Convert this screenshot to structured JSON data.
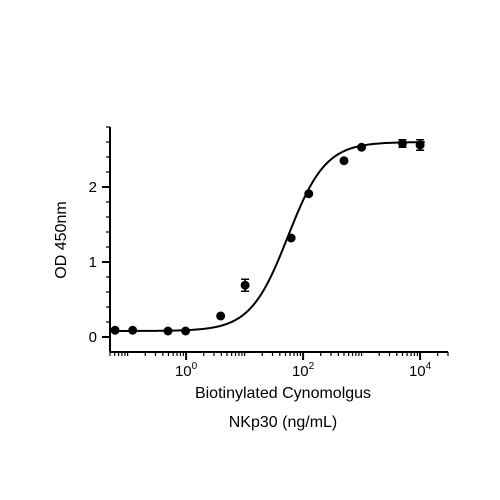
{
  "chart_data": {
    "type": "scatter",
    "xlabel_lines": [
      "Biotinylated Cynomolgus",
      "NKp30 (ng/mL)"
    ],
    "ylabel": "OD 450nm",
    "x_scale": "log",
    "xlim": [
      0.05,
      30000
    ],
    "ylim": [
      -0.2,
      2.8
    ],
    "x_ticks": [
      {
        "value": 1,
        "base": "10",
        "exp": "0"
      },
      {
        "value": 100,
        "base": "10",
        "exp": "2"
      },
      {
        "value": 10000,
        "base": "10",
        "exp": "4"
      }
    ],
    "y_ticks": [
      0,
      1,
      2
    ],
    "grid": false,
    "legend": "none",
    "points": [
      {
        "x": 0.061,
        "y": 0.09,
        "err": 0.01
      },
      {
        "x": 0.122,
        "y": 0.09,
        "err": 0.01
      },
      {
        "x": 0.49,
        "y": 0.08,
        "err": 0.01
      },
      {
        "x": 0.98,
        "y": 0.08,
        "err": 0.01
      },
      {
        "x": 3.9,
        "y": 0.28,
        "err": 0.01
      },
      {
        "x": 10.2,
        "y": 0.69,
        "err": 0.08
      },
      {
        "x": 62.5,
        "y": 1.32,
        "err": 0.02
      },
      {
        "x": 125,
        "y": 1.91,
        "err": 0.02
      },
      {
        "x": 500,
        "y": 2.35,
        "err": 0.02
      },
      {
        "x": 1000,
        "y": 2.53,
        "err": 0.02
      },
      {
        "x": 5000,
        "y": 2.58,
        "err": 0.05
      },
      {
        "x": 10000,
        "y": 2.56,
        "err": 0.07
      }
    ],
    "fit_curve": {
      "model": "4PL",
      "bottom": 0.08,
      "top": 2.6,
      "ec50": 55,
      "hill": 1.35
    },
    "colors": {
      "marker": "#000000",
      "line": "#000000",
      "axis": "#000000"
    }
  }
}
